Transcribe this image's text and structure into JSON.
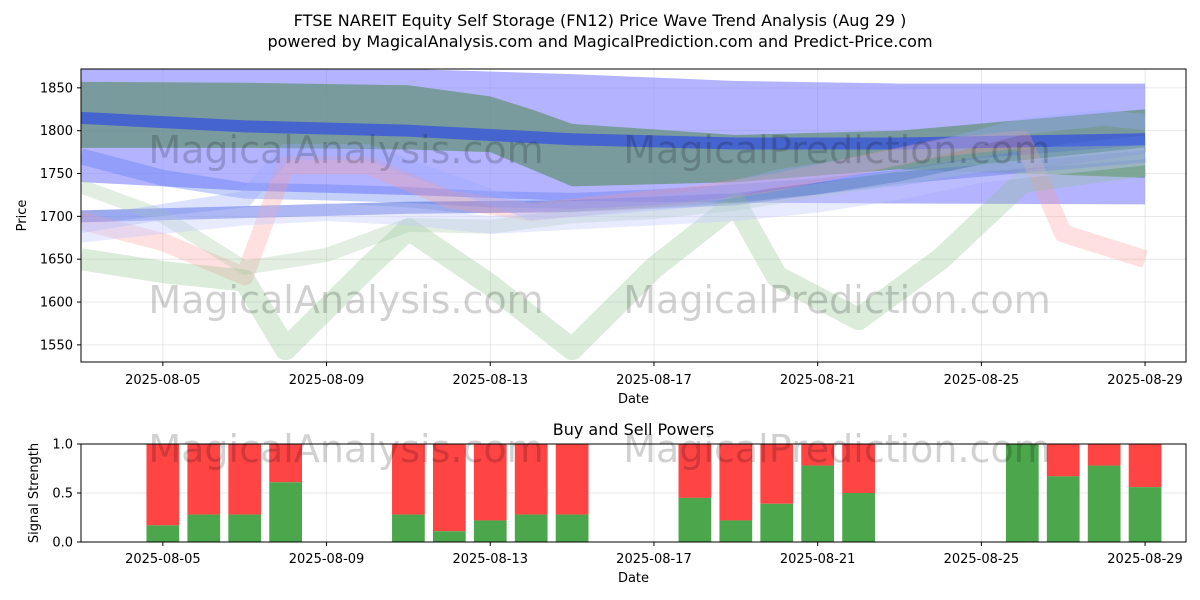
{
  "header": {
    "title": "FTSE NAREIT Equity Self Storage (FN12) Price Wave Trend Analysis (Aug 29 )",
    "subtitle": "powered by MagicalAnalysis.com and MagicalPrediction.com and Predict-Price.com"
  },
  "watermarks": [
    "MagicalAnalysis.com",
    "MagicalPrediction.com"
  ],
  "chart_data": [
    {
      "type": "area",
      "xlabel": "Date",
      "ylabel": "Price",
      "x_start": "2025-08-03",
      "x_end": "2025-08-30",
      "ylim": [
        1530,
        1872
      ],
      "y_ticks": [
        1550,
        1600,
        1650,
        1700,
        1750,
        1800,
        1850
      ],
      "x_tick_labels": [
        "2025-08-05",
        "2025-08-09",
        "2025-08-13",
        "2025-08-17",
        "2025-08-21",
        "2025-08-25",
        "2025-08-29"
      ],
      "x_tick_dates": [
        "2025-08-05",
        "2025-08-09",
        "2025-08-13",
        "2025-08-17",
        "2025-08-21",
        "2025-08-25",
        "2025-08-29"
      ],
      "grid": true,
      "bands": [
        {
          "color": "#8080ff",
          "opacity": 0.6,
          "dates": [
            "2025-08-03",
            "2025-08-07",
            "2025-08-11",
            "2025-08-15",
            "2025-08-19",
            "2025-08-23",
            "2025-08-29"
          ],
          "upper": [
            1880,
            1878,
            1872,
            1866,
            1858,
            1855,
            1855
          ],
          "lower": [
            1740,
            1730,
            1725,
            1718,
            1716,
            1715,
            1714
          ]
        },
        {
          "color": "#5a8f6a",
          "opacity": 0.65,
          "dates": [
            "2025-08-03",
            "2025-08-07",
            "2025-08-11",
            "2025-08-13",
            "2025-08-14",
            "2025-08-15",
            "2025-08-19",
            "2025-08-23",
            "2025-08-29"
          ],
          "upper": [
            1857,
            1856,
            1853,
            1840,
            1825,
            1808,
            1795,
            1800,
            1825
          ],
          "lower": [
            1780,
            1780,
            1778,
            1775,
            1755,
            1735,
            1740,
            1755,
            1745
          ]
        }
      ],
      "lines": [
        {
          "color": "#3a56d8",
          "opacity": 0.8,
          "width": 12,
          "dates": [
            "2025-08-03",
            "2025-08-07",
            "2025-08-11",
            "2025-08-15",
            "2025-08-19",
            "2025-08-23",
            "2025-08-29"
          ],
          "values": [
            1815,
            1805,
            1800,
            1790,
            1785,
            1785,
            1790
          ]
        },
        {
          "color": "#3a56d8",
          "opacity": 0.5,
          "width": 12,
          "dates": [
            "2025-08-03",
            "2025-08-07",
            "2025-08-11",
            "2025-08-15",
            "2025-08-19",
            "2025-08-23",
            "2025-08-29"
          ],
          "values": [
            1700,
            1705,
            1710,
            1712,
            1720,
            1745,
            1770
          ]
        },
        {
          "color": "#5577ee",
          "opacity": 0.35,
          "width": 16,
          "dates": [
            "2025-08-03",
            "2025-08-05",
            "2025-08-07",
            "2025-08-09",
            "2025-08-11",
            "2025-08-13",
            "2025-08-15",
            "2025-08-17",
            "2025-08-19",
            "2025-08-21",
            "2025-08-23",
            "2025-08-25",
            "2025-08-27",
            "2025-08-29"
          ],
          "values": [
            1770,
            1745,
            1730,
            1728,
            1725,
            1720,
            1718,
            1722,
            1728,
            1735,
            1745,
            1760,
            1775,
            1785
          ]
        },
        {
          "color": "#ff9999",
          "opacity": 0.3,
          "width": 18,
          "dates": [
            "2025-08-03",
            "2025-08-05",
            "2025-08-06",
            "2025-08-07",
            "2025-08-08",
            "2025-08-10",
            "2025-08-12",
            "2025-08-14",
            "2025-08-16",
            "2025-08-18",
            "2025-08-20",
            "2025-08-22",
            "2025-08-24",
            "2025-08-26",
            "2025-08-27",
            "2025-08-29"
          ],
          "values": [
            1695,
            1670,
            1650,
            1630,
            1760,
            1760,
            1720,
            1705,
            1715,
            1725,
            1740,
            1760,
            1780,
            1790,
            1680,
            1650
          ]
        },
        {
          "color": "#88c088",
          "opacity": 0.3,
          "width": 22,
          "dates": [
            "2025-08-03",
            "2025-08-05",
            "2025-08-07",
            "2025-08-08",
            "2025-08-10",
            "2025-08-11",
            "2025-08-13",
            "2025-08-15",
            "2025-08-17",
            "2025-08-19",
            "2025-08-20",
            "2025-08-22",
            "2025-08-24",
            "2025-08-26",
            "2025-08-29"
          ],
          "values": [
            1650,
            1635,
            1625,
            1545,
            1640,
            1685,
            1620,
            1545,
            1640,
            1715,
            1630,
            1580,
            1650,
            1740,
            1760
          ]
        },
        {
          "color": "#9fc79f",
          "opacity": 0.3,
          "width": 14,
          "dates": [
            "2025-08-03",
            "2025-08-05",
            "2025-08-07",
            "2025-08-09",
            "2025-08-11",
            "2025-08-13",
            "2025-08-15",
            "2025-08-17",
            "2025-08-19",
            "2025-08-21",
            "2025-08-23",
            "2025-08-25",
            "2025-08-29"
          ],
          "values": [
            1735,
            1700,
            1640,
            1655,
            1690,
            1688,
            1700,
            1705,
            1715,
            1730,
            1745,
            1760,
            1775
          ]
        },
        {
          "color": "#9aa8ff",
          "opacity": 0.35,
          "width": 16,
          "dates": [
            "2025-08-03",
            "2025-08-05",
            "2025-08-07",
            "2025-08-08",
            "2025-08-10",
            "2025-08-12",
            "2025-08-14",
            "2025-08-16",
            "2025-08-18",
            "2025-08-20",
            "2025-08-22",
            "2025-08-24",
            "2025-08-26",
            "2025-08-28",
            "2025-08-29"
          ],
          "values": [
            1690,
            1705,
            1720,
            1775,
            1775,
            1740,
            1705,
            1712,
            1720,
            1745,
            1760,
            1780,
            1805,
            1815,
            1810
          ]
        },
        {
          "color": "#c6cbff",
          "opacity": 0.4,
          "width": 18,
          "dates": [
            "2025-08-03",
            "2025-08-05",
            "2025-08-07",
            "2025-08-09",
            "2025-08-11",
            "2025-08-13",
            "2025-08-15",
            "2025-08-17",
            "2025-08-19",
            "2025-08-21",
            "2025-08-23",
            "2025-08-25",
            "2025-08-29"
          ],
          "values": [
            1680,
            1690,
            1700,
            1705,
            1700,
            1690,
            1695,
            1700,
            1705,
            1715,
            1730,
            1750,
            1770
          ]
        }
      ]
    },
    {
      "type": "bar",
      "title": "Buy and Sell Powers",
      "xlabel": "Date",
      "ylabel": "Signal Strength",
      "ylim": [
        0,
        1
      ],
      "y_ticks": [
        0.0,
        0.5,
        1.0
      ],
      "y_tick_labels": [
        "0.0",
        "0.5",
        "1.0"
      ],
      "x_tick_labels": [
        "2025-08-05",
        "2025-08-09",
        "2025-08-13",
        "2025-08-17",
        "2025-08-21",
        "2025-08-25",
        "2025-08-29"
      ],
      "x_tick_dates": [
        "2025-08-05",
        "2025-08-09",
        "2025-08-13",
        "2025-08-17",
        "2025-08-21",
        "2025-08-25",
        "2025-08-29"
      ],
      "x_start": "2025-08-03",
      "x_end": "2025-08-30",
      "colors": {
        "buy": "#4ca64c",
        "sell": "#ff4444"
      },
      "grid": true,
      "dates": [
        "2025-08-05",
        "2025-08-06",
        "2025-08-07",
        "2025-08-08",
        "2025-08-11",
        "2025-08-12",
        "2025-08-13",
        "2025-08-14",
        "2025-08-15",
        "2025-08-18",
        "2025-08-19",
        "2025-08-20",
        "2025-08-21",
        "2025-08-22",
        "2025-08-26",
        "2025-08-27",
        "2025-08-28",
        "2025-08-29"
      ],
      "buy": [
        0.17,
        0.28,
        0.28,
        0.61,
        0.28,
        0.11,
        0.22,
        0.28,
        0.28,
        0.45,
        0.22,
        0.39,
        0.78,
        0.5,
        1.0,
        0.67,
        0.78,
        0.56
      ]
    }
  ]
}
